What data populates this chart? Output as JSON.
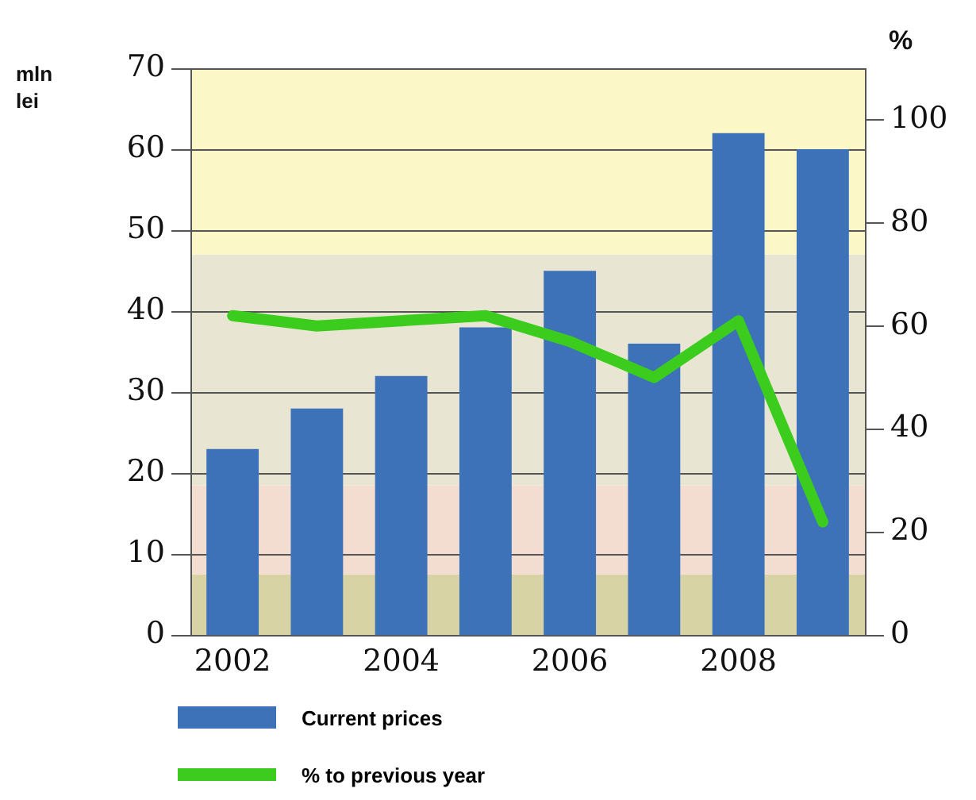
{
  "chart_data": {
    "type": "bar",
    "ylabel": "mln lei",
    "y2label": "%",
    "x": [
      2002,
      2003,
      2004,
      2005,
      2006,
      2007,
      2008,
      2009
    ],
    "xlim": [
      2001.5,
      2009.5
    ],
    "xticks": [
      2002,
      2004,
      2006,
      2008
    ],
    "series": [
      {
        "name": "Current prices",
        "color": "#3d72b8",
        "values": [
          23,
          28,
          32,
          38,
          45,
          36,
          62,
          60
        ]
      },
      {
        "name": "% to previous year",
        "type": "line",
        "axis": "y2",
        "color": "#3ccc1e",
        "values": [
          62,
          60,
          61,
          62,
          57,
          50,
          61,
          22
        ]
      }
    ],
    "ylim": [
      0,
      70
    ],
    "yticks": [
      0,
      10,
      20,
      30,
      40,
      50,
      60,
      70
    ],
    "y2lim": [
      0,
      110
    ],
    "y2ticks": [
      0,
      20,
      40,
      60,
      80,
      100
    ],
    "bands": [
      {
        "axis": "y",
        "from": 0,
        "to": 7.5,
        "color": "#d8d3a4"
      },
      {
        "axis": "y",
        "from": 7.5,
        "to": 18.5,
        "color": "#f2ddd0"
      },
      {
        "axis": "y",
        "from": 18.5,
        "to": 47,
        "color": "#e8e5d3"
      },
      {
        "axis": "y",
        "from": 47,
        "to": 70,
        "color": "#fcf7c6"
      }
    ],
    "grid": "y",
    "legend": "bottom",
    "marker": "none",
    "line_style": "solid"
  }
}
